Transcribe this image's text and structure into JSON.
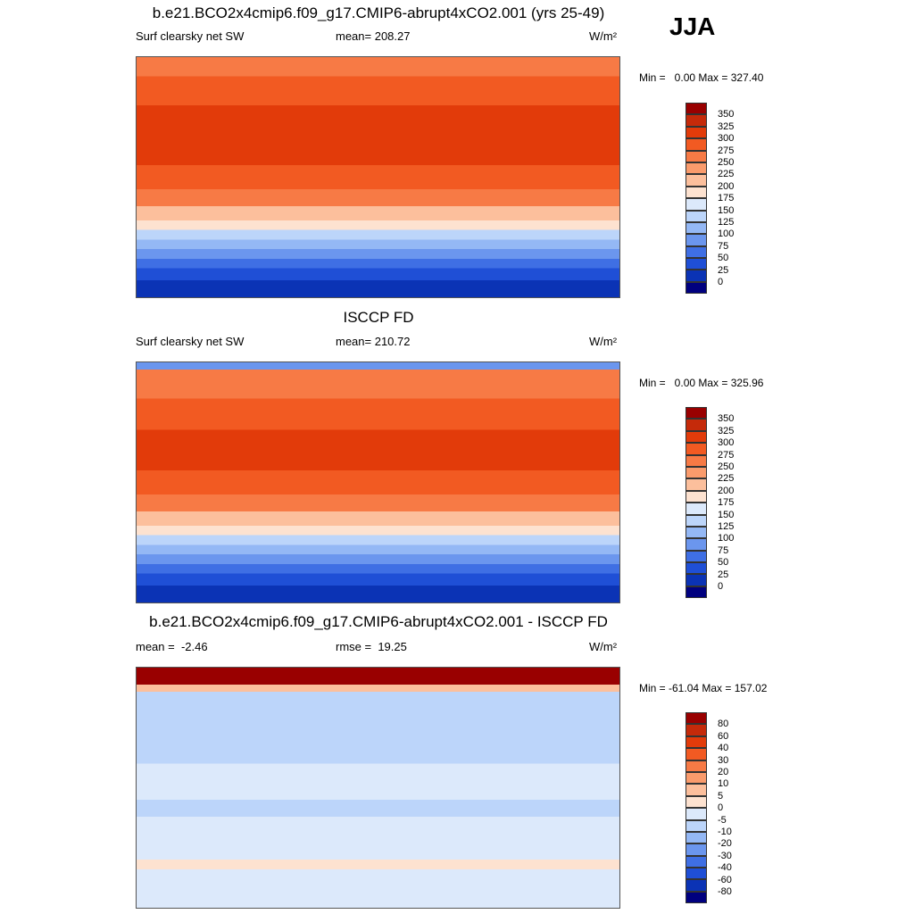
{
  "season": "JJA",
  "panels": [
    {
      "title": "b.e21.BCO2x4cmip6.f09_g17.CMIP6-abrupt4xCO2.001 (yrs 25-49)",
      "left_label": "Surf clearsky net SW",
      "center_label": "mean= 208.27",
      "units": "W/m²",
      "minmax": "Min =   0.00 Max = 327.40",
      "colorbar": {
        "labels": [
          "350",
          "325",
          "300",
          "275",
          "250",
          "225",
          "200",
          "175",
          "150",
          "125",
          "100",
          "75",
          "50",
          "25",
          "0"
        ],
        "colors": [
          "#990000",
          "#c52a0a",
          "#e23b0a",
          "#f25a22",
          "#f77a45",
          "#fa9b6c",
          "#fcbf9c",
          "#fde2d0",
          "#dce9fb",
          "#bcd5fa",
          "#94b8f5",
          "#6b96ee",
          "#3f6fe4",
          "#1f4fd6",
          "#0b33b5",
          "#00007f"
        ]
      }
    },
    {
      "title": "ISCCP FD",
      "left_label": "Surf clearsky net SW",
      "center_label": "mean= 210.72",
      "units": "W/m²",
      "minmax": "Min =   0.00 Max = 325.96",
      "colorbar": {
        "labels": [
          "350",
          "325",
          "300",
          "275",
          "250",
          "225",
          "200",
          "175",
          "150",
          "125",
          "100",
          "75",
          "50",
          "25",
          "0"
        ],
        "colors": [
          "#990000",
          "#c52a0a",
          "#e23b0a",
          "#f25a22",
          "#f77a45",
          "#fa9b6c",
          "#fcbf9c",
          "#fde2d0",
          "#dce9fb",
          "#bcd5fa",
          "#94b8f5",
          "#6b96ee",
          "#3f6fe4",
          "#1f4fd6",
          "#0b33b5",
          "#00007f"
        ]
      }
    },
    {
      "title": "b.e21.BCO2x4cmip6.f09_g17.CMIP6-abrupt4xCO2.001 - ISCCP FD",
      "left_label": "mean =  -2.46",
      "center_label": "rmse =  19.25",
      "units": "W/m²",
      "minmax": "Min = -61.04 Max = 157.02",
      "colorbar": {
        "labels": [
          "80",
          "60",
          "40",
          "30",
          "20",
          "10",
          "5",
          "0",
          "-5",
          "-10",
          "-20",
          "-30",
          "-40",
          "-60",
          "-80"
        ],
        "colors": [
          "#990000",
          "#c52a0a",
          "#e23b0a",
          "#f25a22",
          "#f77a45",
          "#fa9b6c",
          "#fcbf9c",
          "#fde2d0",
          "#dce9fb",
          "#bcd5fa",
          "#94b8f5",
          "#6b96ee",
          "#3f6fe4",
          "#1f4fd6",
          "#0b33b5",
          "#00007f"
        ]
      }
    }
  ]
}
